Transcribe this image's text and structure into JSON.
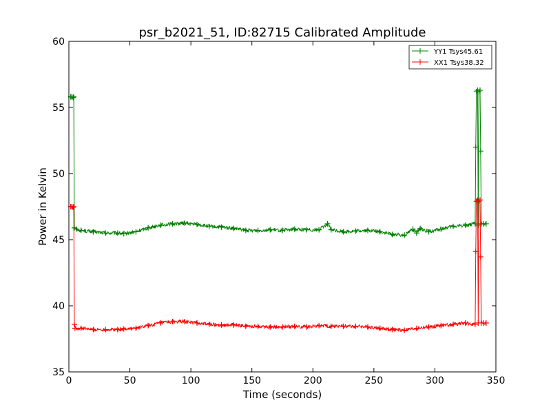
{
  "chart_data": {
    "type": "line",
    "title": "psr_b2021_51, ID:82715 Calibrated Amplitude",
    "xlabel": "Time (seconds)",
    "ylabel": "Power in Kelvin",
    "xlim": [
      0,
      350
    ],
    "ylim": [
      35,
      60
    ],
    "xticks": [
      0,
      50,
      100,
      150,
      200,
      250,
      300,
      350
    ],
    "yticks": [
      35,
      40,
      45,
      50,
      55,
      60
    ],
    "grid": false,
    "legend_position": "top-right",
    "marker": "+",
    "series": [
      {
        "name": "YY1 Tsys45.61",
        "color": "#008000",
        "points": [
          [
            1.5,
            55.8
          ],
          [
            2.5,
            55.8
          ],
          [
            3.5,
            55.75
          ],
          [
            4.0,
            55.8
          ],
          [
            4.5,
            45.9
          ],
          [
            6,
            45.8
          ],
          [
            10,
            45.7
          ],
          [
            20,
            45.6
          ],
          [
            30,
            45.5
          ],
          [
            40,
            45.5
          ],
          [
            45,
            45.45
          ],
          [
            55,
            45.6
          ],
          [
            65,
            45.9
          ],
          [
            75,
            46.1
          ],
          [
            85,
            46.2
          ],
          [
            95,
            46.25
          ],
          [
            105,
            46.15
          ],
          [
            115,
            46.0
          ],
          [
            125,
            45.95
          ],
          [
            135,
            45.85
          ],
          [
            145,
            45.7
          ],
          [
            155,
            45.7
          ],
          [
            165,
            45.75
          ],
          [
            175,
            45.7
          ],
          [
            185,
            45.8
          ],
          [
            195,
            45.75
          ],
          [
            205,
            45.75
          ],
          [
            212,
            46.2
          ],
          [
            215,
            45.75
          ],
          [
            225,
            45.6
          ],
          [
            235,
            45.65
          ],
          [
            245,
            45.7
          ],
          [
            255,
            45.6
          ],
          [
            265,
            45.4
          ],
          [
            275,
            45.35
          ],
          [
            282,
            45.8
          ],
          [
            285,
            45.5
          ],
          [
            288,
            45.85
          ],
          [
            295,
            45.6
          ],
          [
            305,
            45.8
          ],
          [
            315,
            46.0
          ],
          [
            325,
            46.1
          ],
          [
            333,
            46.2
          ],
          [
            333.5,
            52.0
          ],
          [
            334,
            56.2
          ],
          [
            335,
            56.3
          ],
          [
            335.5,
            46.1
          ],
          [
            336,
            56.2
          ],
          [
            337,
            56.3
          ],
          [
            337.5,
            51.7
          ],
          [
            338,
            46.2
          ],
          [
            340,
            46.2
          ],
          [
            342,
            46.2
          ]
        ]
      },
      {
        "name": "XX1 Tsys38.32",
        "color": "#ff0000",
        "points": [
          [
            1.5,
            47.5
          ],
          [
            2.5,
            47.5
          ],
          [
            3.5,
            47.45
          ],
          [
            4.0,
            47.5
          ],
          [
            4.5,
            38.6
          ],
          [
            5,
            38.3
          ],
          [
            10,
            38.3
          ],
          [
            20,
            38.2
          ],
          [
            30,
            38.2
          ],
          [
            40,
            38.2
          ],
          [
            45,
            38.25
          ],
          [
            55,
            38.3
          ],
          [
            65,
            38.5
          ],
          [
            75,
            38.7
          ],
          [
            85,
            38.8
          ],
          [
            95,
            38.8
          ],
          [
            105,
            38.7
          ],
          [
            115,
            38.6
          ],
          [
            125,
            38.55
          ],
          [
            135,
            38.55
          ],
          [
            145,
            38.45
          ],
          [
            155,
            38.45
          ],
          [
            165,
            38.4
          ],
          [
            175,
            38.4
          ],
          [
            185,
            38.45
          ],
          [
            195,
            38.4
          ],
          [
            205,
            38.5
          ],
          [
            215,
            38.45
          ],
          [
            225,
            38.45
          ],
          [
            235,
            38.45
          ],
          [
            245,
            38.4
          ],
          [
            255,
            38.3
          ],
          [
            265,
            38.2
          ],
          [
            275,
            38.15
          ],
          [
            285,
            38.3
          ],
          [
            295,
            38.4
          ],
          [
            305,
            38.5
          ],
          [
            315,
            38.6
          ],
          [
            325,
            38.7
          ],
          [
            333,
            38.6
          ],
          [
            333.5,
            44.1
          ],
          [
            334,
            47.9
          ],
          [
            335,
            48.0
          ],
          [
            335.5,
            38.7
          ],
          [
            336,
            47.9
          ],
          [
            337,
            48.0
          ],
          [
            337.5,
            43.7
          ],
          [
            338,
            38.7
          ],
          [
            340,
            38.7
          ],
          [
            342,
            38.7
          ]
        ]
      }
    ]
  }
}
